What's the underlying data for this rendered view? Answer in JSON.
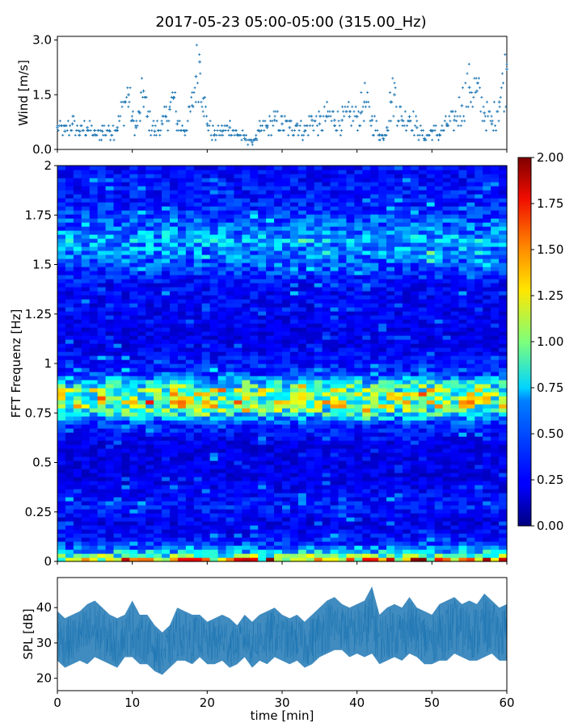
{
  "figure": {
    "title": "2017-05-23 05:00-05:00 (315.00_Hz)"
  },
  "chart_data": [
    {
      "type": "scatter",
      "panel": "wind",
      "ylabel": "Wind [m/s]",
      "xlabel": "",
      "xlim": [
        0,
        60
      ],
      "ylim": [
        0,
        3.1
      ],
      "yticks": [
        0.0,
        1.5,
        3.0
      ],
      "ytick_labels": [
        "0.0",
        "1.5",
        "3.0"
      ],
      "marker": "+",
      "color": "#1f77b4",
      "grid": false,
      "x": [
        0,
        1,
        2,
        3,
        4,
        5,
        6,
        7,
        8,
        9,
        9.5,
        10,
        10.5,
        11,
        11.5,
        12,
        13,
        14,
        14.5,
        15,
        15.5,
        16,
        17,
        18,
        18.5,
        19,
        19.5,
        20,
        21,
        22,
        23,
        24,
        25,
        26,
        26.5,
        27,
        28,
        29,
        30,
        31,
        32,
        33,
        34,
        35,
        36,
        37,
        38,
        39,
        40,
        40.5,
        41,
        42,
        43,
        43.5,
        44,
        44.5,
        45,
        46,
        47,
        48,
        49,
        50,
        51,
        52,
        53,
        54,
        55,
        56,
        57,
        58,
        59,
        60
      ],
      "y": [
        0.6,
        0.5,
        0.7,
        0.5,
        0.6,
        0.4,
        0.5,
        0.5,
        0.6,
        1.3,
        1.5,
        0.8,
        0.6,
        1.0,
        1.6,
        0.9,
        0.5,
        0.7,
        0.9,
        1.1,
        1.4,
        0.7,
        0.5,
        1.2,
        2.0,
        2.4,
        1.4,
        0.7,
        0.4,
        0.5,
        0.6,
        0.4,
        0.3,
        0.2,
        0.3,
        0.5,
        0.6,
        0.8,
        0.7,
        0.6,
        0.7,
        0.5,
        0.8,
        0.7,
        0.9,
        0.8,
        0.8,
        0.9,
        0.9,
        1.0,
        1.3,
        0.8,
        0.4,
        0.3,
        0.6,
        1.3,
        1.5,
        0.8,
        0.9,
        0.6,
        0.3,
        0.5,
        0.4,
        0.7,
        0.8,
        1.2,
        1.7,
        1.6,
        1.0,
        0.7,
        1.3,
        2.2
      ]
    },
    {
      "type": "heatmap",
      "panel": "spectrogram",
      "ylabel": "FFT Frequenz [Hz]",
      "xlabel": "",
      "xlim": [
        0,
        60
      ],
      "ylim": [
        0,
        2
      ],
      "yticks": [
        0,
        0.25,
        0.5,
        0.75,
        1,
        1.25,
        1.5,
        1.75,
        2
      ],
      "ytick_labels": [
        "0",
        "0.25",
        "0.5",
        "0.75",
        "1",
        "1.25",
        "1.5",
        "1.75",
        "2"
      ],
      "colormap": "jet",
      "clim": [
        0,
        2
      ],
      "colorbar_ticks": [
        "0.00",
        "0.25",
        "0.50",
        "0.75",
        "1.00",
        "1.25",
        "1.50",
        "1.75",
        "2.00"
      ],
      "profile": {
        "freq": [
          0,
          0.03,
          0.06,
          0.1,
          0.2,
          0.27,
          0.4,
          0.6,
          0.7,
          0.74,
          0.77,
          0.8,
          0.83,
          0.86,
          0.9,
          0.95,
          1.1,
          1.4,
          1.55,
          1.63,
          1.7,
          1.8,
          2.0
        ],
        "level": [
          1.6,
          0.9,
          0.55,
          0.3,
          0.2,
          0.3,
          0.2,
          0.2,
          0.35,
          0.7,
          0.9,
          1.15,
          0.95,
          1.0,
          0.75,
          0.35,
          0.2,
          0.25,
          0.5,
          0.6,
          0.45,
          0.3,
          0.25
        ]
      }
    },
    {
      "type": "area",
      "panel": "spl",
      "ylabel": "SPL [dB]",
      "xlabel": "time [min]",
      "xlim": [
        0,
        60
      ],
      "ylim": [
        16.5,
        48.5
      ],
      "yticks": [
        20,
        30,
        40
      ],
      "ytick_labels": [
        "20",
        "30",
        "40"
      ],
      "xticks": [
        0,
        10,
        20,
        30,
        40,
        50,
        60
      ],
      "xtick_labels": [
        "0",
        "10",
        "20",
        "30",
        "40",
        "50",
        "60"
      ],
      "color": "#1f77b4",
      "grid": false,
      "x": [
        0,
        1,
        2,
        3,
        4,
        5,
        6,
        7,
        8,
        9,
        10,
        11,
        12,
        13,
        14,
        15,
        16,
        17,
        18,
        19,
        20,
        21,
        22,
        23,
        24,
        25,
        26,
        27,
        28,
        29,
        30,
        31,
        32,
        33,
        34,
        35,
        36,
        37,
        38,
        39,
        40,
        41,
        42,
        43,
        44,
        45,
        46,
        47,
        48,
        49,
        50,
        51,
        52,
        53,
        54,
        55,
        56,
        57,
        58,
        59,
        60
      ],
      "y_low": [
        25,
        23,
        24,
        25,
        24,
        26,
        25,
        24,
        23,
        26,
        26,
        24,
        24,
        22,
        21,
        23,
        25,
        25,
        24,
        26,
        24,
        24,
        25,
        23,
        24,
        26,
        23,
        25,
        24,
        26,
        25,
        24,
        25,
        23,
        24,
        26,
        27,
        28,
        28,
        26,
        27,
        26,
        27,
        24,
        25,
        26,
        25,
        27,
        26,
        24,
        24,
        25,
        25,
        27,
        26,
        25,
        25,
        26,
        27,
        25,
        25
      ],
      "y_high": [
        39,
        37,
        38,
        39,
        41,
        42,
        40,
        38,
        37,
        38,
        42,
        38,
        38,
        35,
        33,
        35,
        40,
        39,
        38,
        38,
        36,
        37,
        38,
        37,
        35,
        38,
        36,
        38,
        39,
        40,
        38,
        37,
        38,
        36,
        38,
        40,
        42,
        43,
        41,
        40,
        41,
        42,
        46,
        38,
        40,
        41,
        40,
        43,
        40,
        39,
        38,
        41,
        42,
        43,
        41,
        42,
        41,
        44,
        42,
        40,
        41
      ]
    }
  ]
}
